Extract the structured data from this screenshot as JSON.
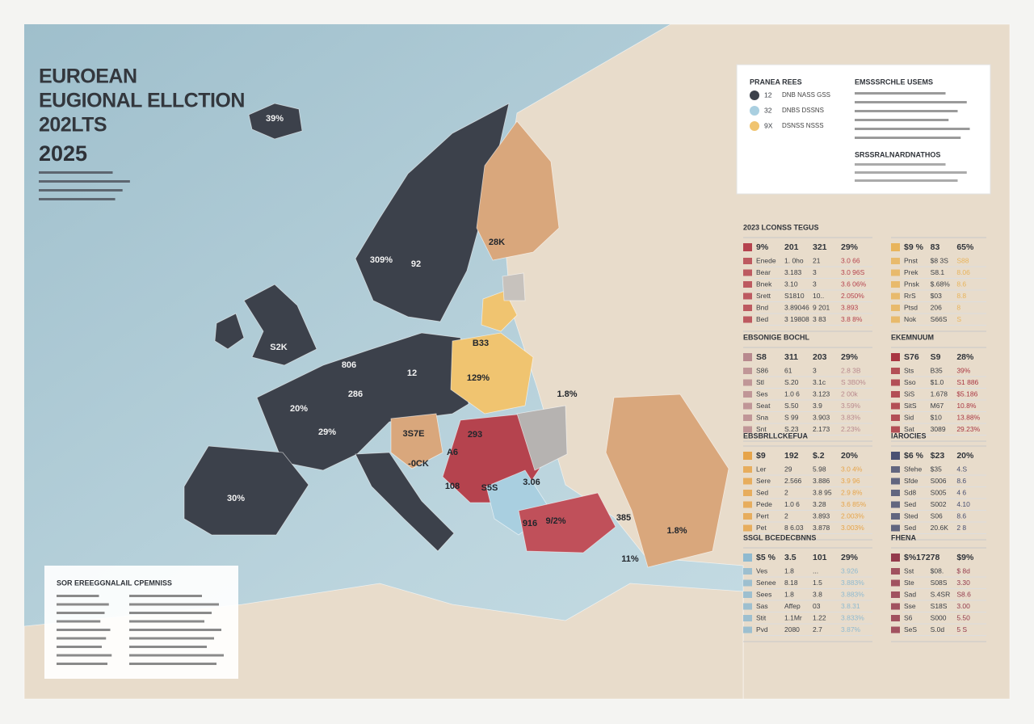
{
  "title": {
    "line1": "EUROEAN",
    "line2": "EUGIONAL ELLCTION",
    "line3": "202LTS",
    "year": "2025"
  },
  "legend": {
    "title": "PRANEA REES",
    "items": [
      {
        "value": "12",
        "label": "DNB NASS GSS",
        "color": "#3c414b"
      },
      {
        "value": "32",
        "label": "DNBS DSSNS",
        "color": "#a9cfe0"
      },
      {
        "value": "9X",
        "label": "DSNSS NSSS",
        "color": "#f0c470"
      }
    ],
    "notes_title": "EMSSSRCHLE USEMS",
    "notes_subtitle": "SRSSRALNARDNATHOS"
  },
  "map_labels": [
    "39%",
    "28K",
    "309%",
    "92",
    "S2K",
    "806",
    "12",
    "B33",
    "129%",
    "286",
    "20%",
    "29%",
    "3S7E",
    "293",
    "1.8%",
    "-0CK",
    "A6",
    "108",
    "S5S",
    "3.06",
    "30%",
    "9/2%",
    "916",
    "385",
    "1.8%",
    "11%"
  ],
  "tables": [
    {
      "title": "2023 LCONSS TEGUS",
      "color": "#b5434e",
      "header": [
        "9%",
        "201",
        "321",
        "29%"
      ],
      "rows": [
        [
          "Enede",
          "1. 0ho",
          "21",
          "3.0 66"
        ],
        [
          "Bear",
          "3.183",
          "3",
          "3.0 96S"
        ],
        [
          "Bnek",
          "3.10",
          "3",
          "3.6 06%"
        ],
        [
          "Srett",
          "S1810",
          "10..",
          "2.050%"
        ],
        [
          "Bnd",
          "3.89046",
          "9 201",
          "3.893"
        ],
        [
          "Bed",
          "3 19808",
          "3 83",
          "3.8 8%"
        ]
      ]
    },
    {
      "color": "#e8b45c",
      "header": [
        "$9 %",
        "83",
        "65%"
      ],
      "rows": [
        [
          "Pnst",
          "$8 3S",
          "S88"
        ],
        [
          "Prek",
          "S8.1",
          "8.06"
        ],
        [
          "Pnsk",
          "$.68%",
          "8.6"
        ],
        [
          "RrS",
          "$03",
          "8.8"
        ],
        [
          "Ptsd",
          "206",
          "8"
        ],
        [
          "Nok",
          "S66S",
          "S"
        ]
      ]
    },
    {
      "title": "EBSONIGE BOCHL",
      "color": "#b8898e",
      "header": [
        "S8",
        "311",
        "203",
        "29%"
      ],
      "rows": [
        [
          "S86",
          "61",
          "3",
          "2.8 3B"
        ],
        [
          "Stl",
          "S.20",
          "3.1c",
          "S 3B0%"
        ],
        [
          "Ses",
          "1.0 6",
          "3.123",
          "2 00k"
        ],
        [
          "Seat",
          "S.50",
          "3.9",
          "3.59%"
        ],
        [
          "Sna",
          "S 99",
          "3.903",
          "3.83%"
        ],
        [
          "Snt",
          "S.23",
          "2.173",
          "2.23%"
        ]
      ]
    },
    {
      "title": "EKEMNUUM",
      "color": "#a93642",
      "header": [
        "S76",
        "S9",
        "28%"
      ],
      "rows": [
        [
          "Sts",
          "B35",
          "39%"
        ],
        [
          "Sso",
          "$1.0",
          "S1 886"
        ],
        [
          "SiS",
          "1.678",
          "$5.186"
        ],
        [
          "SitS",
          "M67",
          "10.8%"
        ],
        [
          "Sid",
          "$10",
          "13.88%"
        ],
        [
          "Sat",
          "3089",
          "29.23%"
        ]
      ]
    },
    {
      "title": "EBSBRLLCKEFUA",
      "color": "#e6a44a",
      "header": [
        "$9",
        "192",
        "$.2",
        "20%"
      ],
      "rows": [
        [
          "Ler",
          "29",
          "5.98",
          "3.0 4%"
        ],
        [
          "Sere",
          "2.566",
          "3.886",
          "3.9 96"
        ],
        [
          "Sed",
          "2",
          "3.8 95",
          "2.9 8%"
        ],
        [
          "Pede",
          "1.0 6",
          "3.28",
          "3.6 85%"
        ],
        [
          "Pert",
          "2",
          "3.893",
          "2.003%"
        ],
        [
          "Pet",
          "8 6.03",
          "3.878",
          "3.003%"
        ]
      ]
    },
    {
      "title": "IAROCIES",
      "color": "#4a5172",
      "header": [
        "$6 %",
        "$23",
        "20%"
      ],
      "rows": [
        [
          "Sfehe",
          "$35",
          "4.S"
        ],
        [
          "Sfde",
          "S006",
          "8.6"
        ],
        [
          "Sd8",
          "S005",
          "4 6"
        ],
        [
          "Sed",
          "S002",
          "4.10"
        ],
        [
          "Sted",
          "S06",
          "8.6"
        ],
        [
          "Sed",
          "20.6K",
          "2 8"
        ]
      ]
    },
    {
      "title": "SSGL BCEDECBNNS",
      "color": "#8fbad0",
      "header": [
        "$5 %",
        "3.5",
        "101",
        "29%"
      ],
      "rows": [
        [
          "Ves",
          "1.8",
          "...",
          "3.926"
        ],
        [
          "Senee",
          "8.18",
          "1.5",
          "3.883%"
        ],
        [
          "Sees",
          "1.8",
          "3.8",
          "3.883%"
        ],
        [
          "Sas",
          "Affep",
          "03",
          "3.8.31"
        ],
        [
          "Stit",
          "1.1Mr",
          "1.22",
          "3.833%"
        ],
        [
          "Pvd",
          "2080",
          "2.7",
          "3.87%"
        ]
      ]
    },
    {
      "title": "FHENA",
      "color": "#943a4c",
      "header": [
        "$%172",
        "78",
        "$9%"
      ],
      "rows": [
        [
          "Sst",
          "$08.",
          "$ 8d"
        ],
        [
          "Ste",
          "S08S",
          "3.30"
        ],
        [
          "Sad",
          "S.4SR",
          "S8.6"
        ],
        [
          "Sse",
          "S18S",
          "3.00"
        ],
        [
          "S6",
          "S000",
          "5.50"
        ],
        [
          "SeS",
          "S.0d",
          "5 S"
        ]
      ]
    }
  ],
  "info_box": {
    "title": "SOR EREEGGNALAIL CPEMNISS"
  }
}
